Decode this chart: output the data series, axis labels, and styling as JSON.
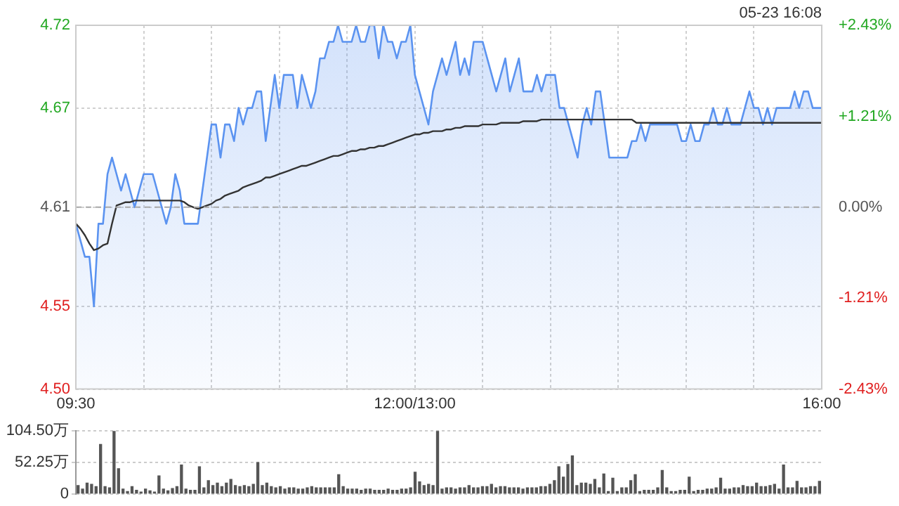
{
  "chart_data": [
    {
      "type": "area",
      "annotations": [
        "05-23 16:08"
      ],
      "grid": true,
      "marker": "none",
      "line_style": "solid",
      "categories": [
        "09:30",
        null,
        null,
        null,
        null,
        null,
        null,
        null,
        null,
        null,
        null,
        null,
        null,
        null,
        null,
        null,
        null,
        null,
        null,
        null,
        null,
        null,
        null,
        null,
        null,
        null,
        null,
        null,
        null,
        null,
        null,
        null,
        null,
        null,
        null,
        null,
        null,
        null,
        null,
        null,
        null,
        null,
        null,
        null,
        null,
        null,
        null,
        null,
        null,
        null,
        null,
        null,
        null,
        null,
        null,
        null,
        null,
        null,
        null,
        null,
        null,
        null,
        null,
        null,
        null,
        null,
        null,
        null,
        null,
        null,
        null,
        null,
        null,
        null,
        null,
        "12:00/13:00",
        null,
        null,
        null,
        null,
        null,
        null,
        null,
        null,
        null,
        null,
        null,
        null,
        null,
        null,
        null,
        null,
        null,
        null,
        null,
        null,
        null,
        null,
        null,
        null,
        null,
        null,
        null,
        null,
        null,
        null,
        null,
        null,
        null,
        null,
        null,
        null,
        null,
        null,
        null,
        null,
        null,
        null,
        null,
        null,
        null,
        null,
        null,
        null,
        null,
        null,
        null,
        null,
        null,
        null,
        null,
        null,
        null,
        null,
        null,
        null,
        null,
        null,
        null,
        null,
        null,
        null,
        null,
        null,
        null,
        null,
        null,
        null,
        null,
        null,
        null,
        null,
        null,
        null,
        null,
        null,
        null,
        null,
        null,
        null,
        null,
        null,
        null,
        null,
        null,
        "16:00"
      ],
      "ylim": [
        4.5,
        4.72
      ],
      "yticks": [
        {
          "value": 4.5,
          "label": "4.50"
        },
        4.55,
        4.61,
        4.67,
        4.72
      ],
      "y2lim": [
        -2.43,
        2.43
      ],
      "y2ticks": [
        {
          "value": -2.43,
          "label": "-2.43%"
        },
        {
          "value": -1.21,
          "label": "-1.21%"
        },
        {
          "value": 0,
          "label": "0.00%"
        },
        {
          "value": 1.21,
          "label": "+1.21%"
        },
        {
          "value": 2.43,
          "label": "+2.43%"
        }
      ],
      "ref_lines": [
        {
          "axis": "y",
          "value": 4.61,
          "color": "#aaaaaa",
          "line_style": "dashed"
        }
      ],
      "series": [
        {
          "type": "area",
          "color": "#5b93f0",
          "values": [
            4.6,
            4.59,
            4.58,
            4.58,
            4.55,
            4.6,
            4.6,
            4.63,
            4.64,
            4.63,
            4.62,
            4.63,
            4.62,
            4.61,
            4.62,
            4.63,
            4.63,
            4.63,
            4.62,
            4.61,
            4.6,
            4.61,
            4.63,
            4.62,
            4.6,
            4.6,
            4.6,
            4.6,
            4.62,
            4.64,
            4.66,
            4.66,
            4.64,
            4.66,
            4.66,
            4.65,
            4.67,
            4.66,
            4.67,
            4.67,
            4.68,
            4.68,
            4.65,
            4.67,
            4.69,
            4.67,
            4.69,
            4.69,
            4.69,
            4.67,
            4.69,
            4.68,
            4.67,
            4.68,
            4.7,
            4.7,
            4.71,
            4.71,
            4.72,
            4.71,
            4.71,
            4.71,
            4.72,
            4.71,
            4.71,
            4.72,
            4.72,
            4.7,
            4.72,
            4.71,
            4.71,
            4.7,
            4.71,
            4.71,
            4.72,
            4.69,
            4.68,
            4.67,
            4.66,
            4.68,
            4.69,
            4.7,
            4.69,
            4.7,
            4.71,
            4.69,
            4.7,
            4.69,
            4.71,
            4.71,
            4.71,
            4.7,
            4.69,
            4.68,
            4.69,
            4.7,
            4.68,
            4.69,
            4.7,
            4.68,
            4.68,
            4.68,
            4.69,
            4.68,
            4.69,
            4.69,
            4.69,
            4.67,
            4.67,
            4.66,
            4.65,
            4.64,
            4.66,
            4.67,
            4.66,
            4.68,
            4.68,
            4.66,
            4.64,
            4.64,
            4.64,
            4.64,
            4.64,
            4.65,
            4.65,
            4.66,
            4.65,
            4.66,
            4.66,
            4.66,
            4.66,
            4.66,
            4.66,
            4.66,
            4.65,
            4.65,
            4.66,
            4.65,
            4.65,
            4.66,
            4.66,
            4.67,
            4.66,
            4.66,
            4.67,
            4.66,
            4.66,
            4.66,
            4.67,
            4.68,
            4.67,
            4.67,
            4.66,
            4.67,
            4.66,
            4.67,
            4.67,
            4.67,
            4.67,
            4.68,
            4.67,
            4.68,
            4.68,
            4.67,
            4.67,
            4.67
          ]
        },
        {
          "type": "line",
          "color": "#333333",
          "values": [
            4.6,
            4.597,
            4.593,
            4.588,
            4.584,
            4.585,
            4.587,
            4.588,
            4.6,
            4.611,
            4.612,
            4.613,
            4.613,
            4.614,
            4.614,
            4.614,
            4.614,
            4.614,
            4.614,
            4.614,
            4.614,
            4.614,
            4.614,
            4.614,
            4.613,
            4.611,
            4.61,
            4.609,
            4.61,
            4.611,
            4.612,
            4.614,
            4.615,
            4.617,
            4.618,
            4.619,
            4.62,
            4.622,
            4.623,
            4.624,
            4.625,
            4.626,
            4.628,
            4.628,
            4.629,
            4.63,
            4.631,
            4.632,
            4.633,
            4.634,
            4.635,
            4.635,
            4.636,
            4.637,
            4.638,
            4.639,
            4.64,
            4.641,
            4.641,
            4.642,
            4.643,
            4.644,
            4.644,
            4.645,
            4.645,
            4.646,
            4.646,
            4.647,
            4.647,
            4.648,
            4.649,
            4.65,
            4.651,
            4.652,
            4.653,
            4.654,
            4.654,
            4.655,
            4.655,
            4.656,
            4.656,
            4.656,
            4.657,
            4.657,
            4.658,
            4.658,
            4.659,
            4.659,
            4.659,
            4.659,
            4.66,
            4.66,
            4.66,
            4.66,
            4.661,
            4.661,
            4.661,
            4.661,
            4.661,
            4.662,
            4.662,
            4.662,
            4.662,
            4.663,
            4.663,
            4.663,
            4.663,
            4.663,
            4.663,
            4.663,
            4.663,
            4.663,
            4.663,
            4.663,
            4.663,
            4.663,
            4.663,
            4.663,
            4.663,
            4.663,
            4.663,
            4.663,
            4.663,
            4.663,
            4.661,
            4.661,
            4.661,
            4.661,
            4.661,
            4.661,
            4.661,
            4.661,
            4.661,
            4.661,
            4.661,
            4.661,
            4.661,
            4.661,
            4.661,
            4.661,
            4.661,
            4.661,
            4.661,
            4.661,
            4.661,
            4.661,
            4.661,
            4.661,
            4.661,
            4.661,
            4.661,
            4.661,
            4.661,
            4.661,
            4.661,
            4.661,
            4.661,
            4.661,
            4.661,
            4.661,
            4.661,
            4.661,
            4.661,
            4.661,
            4.661,
            4.661
          ]
        }
      ]
    },
    {
      "type": "bar",
      "color": "#555555",
      "grid": "y",
      "tick_labels": "y",
      "categories": [
        null,
        null,
        null,
        null,
        null,
        null,
        null,
        null,
        null,
        null,
        null,
        null,
        null,
        null,
        null,
        null,
        null,
        null,
        null,
        null,
        null,
        null,
        null,
        null,
        null,
        null,
        null,
        null,
        null,
        null,
        null,
        null,
        null,
        null,
        null,
        null,
        null,
        null,
        null,
        null,
        null,
        null,
        null,
        null,
        null,
        null,
        null,
        null,
        null,
        null,
        null,
        null,
        null,
        null,
        null,
        null,
        null,
        null,
        null,
        null,
        null,
        null,
        null,
        null,
        null,
        null,
        null,
        null,
        null,
        null,
        null,
        null,
        null,
        null,
        null,
        null,
        null,
        null,
        null,
        null,
        null,
        null,
        null,
        null,
        null,
        null,
        null,
        null,
        null,
        null,
        null,
        null,
        null,
        null,
        null,
        null,
        null,
        null,
        null,
        null,
        null,
        null,
        null,
        null,
        null,
        null,
        null,
        null,
        null,
        null,
        null,
        null,
        null,
        null,
        null,
        null,
        null,
        null,
        null,
        null,
        null,
        null,
        null,
        null,
        null,
        null,
        null,
        null,
        null,
        null,
        null,
        null,
        null,
        null,
        null,
        null,
        null,
        null,
        null,
        null,
        null,
        null,
        null,
        null,
        null,
        null,
        null,
        null,
        null,
        null,
        null,
        null,
        null,
        null,
        null,
        null,
        null,
        null,
        null,
        null,
        null,
        null,
        null,
        null,
        null,
        null
      ],
      "ylim": [
        0,
        104.5
      ],
      "yticks": [
        0,
        {
          "value": 52.25,
          "label": "52.25万"
        },
        {
          "value": 104.5,
          "label": "104.50万"
        }
      ],
      "values": [
        14,
        8,
        18,
        16,
        12,
        82,
        12,
        10,
        104.5,
        42,
        8,
        4,
        12,
        6,
        3,
        8,
        5,
        3,
        30,
        8,
        5,
        9,
        12,
        48,
        8,
        6,
        6,
        45,
        10,
        22,
        14,
        18,
        12,
        18,
        24,
        14,
        12,
        14,
        12,
        16,
        52,
        14,
        18,
        12,
        10,
        12,
        8,
        10,
        10,
        8,
        8,
        10,
        12,
        10,
        10,
        10,
        10,
        10,
        32,
        12,
        8,
        8,
        8,
        6,
        8,
        8,
        6,
        6,
        6,
        8,
        6,
        6,
        8,
        8,
        10,
        36,
        20,
        14,
        16,
        14,
        104,
        8,
        10,
        10,
        8,
        10,
        10,
        14,
        10,
        10,
        12,
        12,
        16,
        10,
        12,
        12,
        10,
        10,
        10,
        8,
        10,
        10,
        10,
        12,
        12,
        16,
        22,
        45,
        28,
        49,
        63,
        14,
        18,
        18,
        16,
        24,
        10,
        33,
        4,
        26,
        4,
        10,
        10,
        22,
        32,
        4,
        6,
        6,
        6,
        10,
        39,
        10,
        4,
        4,
        6,
        6,
        28,
        4,
        6,
        6,
        8,
        8,
        10,
        26,
        8,
        8,
        10,
        10,
        14,
        12,
        12,
        18,
        12,
        12,
        14,
        16,
        8,
        48,
        10,
        10,
        21,
        10,
        10,
        12,
        12,
        21
      ]
    }
  ]
}
